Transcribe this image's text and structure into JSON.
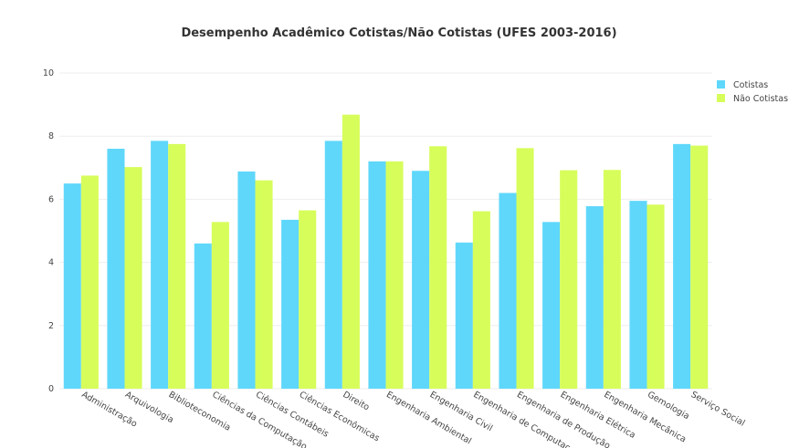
{
  "chart_data": {
    "type": "bar",
    "title": "Desempenho Acadêmico Cotistas/Não Cotistas (UFES 2003-2016)",
    "xlabel": "",
    "ylabel": "",
    "ylim": [
      0,
      10
    ],
    "yticks": [
      0,
      2,
      4,
      6,
      8,
      10
    ],
    "grid": true,
    "legend_position": "top-right",
    "categories": [
      "Administração",
      "Arquivologia",
      "Biblioteconomia",
      "Ciências da Computação",
      "Ciências Contábeis",
      "Ciências Econômicas",
      "Direito",
      "Engenharia Ambiental",
      "Engenharia Civil",
      "Engenharia de Computaç...",
      "Engenharia de Produção",
      "Engenharia Elétrica",
      "Engenharia Mecânica",
      "Gemologia",
      "Serviço Social"
    ],
    "series": [
      {
        "name": "Cotistas",
        "color": "#5fd7fb",
        "values": [
          6.5,
          7.6,
          7.85,
          4.6,
          6.88,
          5.35,
          7.85,
          7.2,
          6.9,
          4.63,
          6.2,
          5.28,
          5.78,
          5.95,
          7.75
        ]
      },
      {
        "name": "Não Cotistas",
        "color": "#d7fd5b",
        "values": [
          6.75,
          7.02,
          7.75,
          5.28,
          6.6,
          5.65,
          8.68,
          7.2,
          7.68,
          5.62,
          7.62,
          6.92,
          6.93,
          5.83,
          7.7
        ]
      }
    ]
  }
}
